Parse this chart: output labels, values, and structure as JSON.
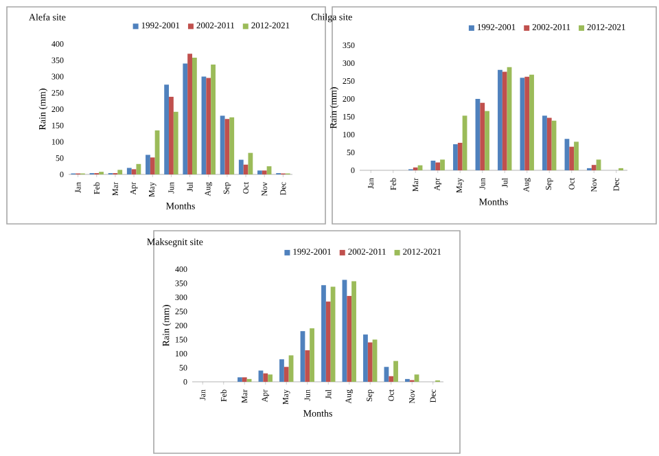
{
  "chart_data": [
    {
      "type": "bar",
      "title": "Alefa site",
      "xlabel": "Months",
      "ylabel": "Rain (mm)",
      "legend": "top",
      "ylim": [
        0,
        400
      ],
      "yticks": [
        0,
        50,
        100,
        150,
        200,
        250,
        300,
        350,
        400
      ],
      "categories": [
        "Jan",
        "Feb",
        "Mar",
        "Apr",
        "May",
        "Jun",
        "Jul",
        "Aug",
        "Sep",
        "Oct",
        "Nov",
        "Dec"
      ],
      "series": [
        {
          "name": "1992-2001",
          "color": "#4f81bd",
          "values": [
            3,
            4,
            4,
            20,
            60,
            275,
            340,
            300,
            180,
            45,
            12,
            4
          ]
        },
        {
          "name": "2002-2011",
          "color": "#c0504d",
          "values": [
            3,
            4,
            4,
            16,
            52,
            238,
            370,
            296,
            170,
            30,
            12,
            3
          ]
        },
        {
          "name": "2012-2021",
          "color": "#9bbb59",
          "values": [
            3,
            8,
            14,
            32,
            135,
            192,
            358,
            337,
            175,
            66,
            25,
            3
          ]
        }
      ]
    },
    {
      "type": "bar",
      "title": "Chilga site",
      "xlabel": "Months",
      "ylabel": "Rain (mm)",
      "legend": "top",
      "ylim": [
        0,
        350
      ],
      "yticks": [
        0,
        50,
        100,
        150,
        200,
        250,
        300,
        350
      ],
      "categories": [
        "Jan",
        "Feb",
        "Mar",
        "Apr",
        "May",
        "Jun",
        "Jul",
        "Aug",
        "Sep",
        "Oct",
        "Nov",
        "Dec"
      ],
      "series": [
        {
          "name": "1992-2001",
          "color": "#4f81bd",
          "values": [
            0,
            0,
            3,
            27,
            73,
            200,
            281,
            259,
            153,
            88,
            6,
            0
          ]
        },
        {
          "name": "2002-2011",
          "color": "#c0504d",
          "values": [
            0,
            0,
            8,
            22,
            77,
            189,
            276,
            262,
            147,
            66,
            15,
            0
          ]
        },
        {
          "name": "2012-2021",
          "color": "#9bbb59",
          "values": [
            0,
            0,
            14,
            30,
            153,
            166,
            289,
            268,
            139,
            80,
            30,
            6
          ]
        }
      ]
    },
    {
      "type": "bar",
      "title": "Maksegnit site",
      "xlabel": "Months",
      "ylabel": "Rain (mm)",
      "legend": "top",
      "ylim": [
        0,
        400
      ],
      "yticks": [
        0,
        50,
        100,
        150,
        200,
        250,
        300,
        350,
        400
      ],
      "categories": [
        "Jan",
        "Feb",
        "Mar",
        "Apr",
        "May",
        "Jun",
        "Jul",
        "Aug",
        "Sep",
        "Oct",
        "Nov",
        "Dec"
      ],
      "series": [
        {
          "name": "1992-2001",
          "color": "#4f81bd",
          "values": [
            0,
            0,
            16,
            40,
            80,
            180,
            343,
            362,
            168,
            53,
            10,
            0
          ]
        },
        {
          "name": "2002-2011",
          "color": "#c0504d",
          "values": [
            0,
            0,
            16,
            30,
            53,
            112,
            285,
            305,
            140,
            20,
            6,
            0
          ]
        },
        {
          "name": "2012-2021",
          "color": "#9bbb59",
          "values": [
            0,
            0,
            10,
            26,
            94,
            190,
            338,
            357,
            150,
            74,
            26,
            5
          ]
        }
      ]
    }
  ]
}
